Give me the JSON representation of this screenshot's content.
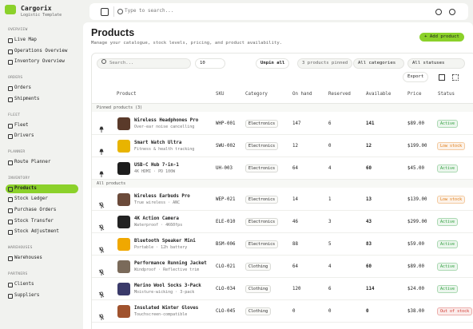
{
  "sidebar": {
    "brand": "Cargorix",
    "tagline": "Logistic Template",
    "sections": [
      {
        "label": "OVERVIEW",
        "items": [
          "Live Map",
          "Operations Overview",
          "Inventory Overview"
        ]
      },
      {
        "label": "ORDERS",
        "items": [
          "Orders",
          "Shipments"
        ]
      },
      {
        "label": "FLEET",
        "items": [
          "Fleet",
          "Drivers"
        ]
      },
      {
        "label": "PLANNER",
        "items": [
          "Route Planner"
        ]
      },
      {
        "label": "INVENTORY",
        "items": [
          "Products",
          "Stock Ledger",
          "Purchase Orders",
          "Stock Transfer",
          "Stock Adjustment"
        ]
      },
      {
        "label": "WAREHOUSES",
        "items": [
          "Warehouses"
        ]
      },
      {
        "label": "PARTNERS",
        "items": [
          "Clients",
          "Suppliers"
        ]
      }
    ]
  },
  "topbar": {
    "search": "Type to search..."
  },
  "header": {
    "title": "Products",
    "subtitle": "Manage your catalogue, stock levels, pricing, and product availability.",
    "add_button": "+ Add product"
  },
  "toolbar": {
    "search": "Search...",
    "page_size": "10",
    "unpin": "Unpin all",
    "pinned_count": "3 products pinned",
    "category_filter": "All categories",
    "status_filter": "All statuses",
    "export": "Export"
  },
  "table": {
    "columns": [
      "Product",
      "SKU",
      "Category",
      "On hand",
      "Reserved",
      "Available",
      "Price",
      "Status"
    ],
    "groups": [
      {
        "label": "Pinned products (3)",
        "pinned": true,
        "rows": [
          {
            "name": "Wireless Headphones Pro",
            "desc": "Over-ear noise cancelling",
            "sku": "WHP-001",
            "category": "Electronics",
            "on_hand": "147",
            "reserved": "6",
            "available": "141",
            "price": "$89.00",
            "status": "Active",
            "status_color": "#2e9e3c",
            "image_color": "#5a3a2a"
          },
          {
            "name": "Smart Watch Ultra",
            "desc": "Fitness & health tracking",
            "sku": "SWU-002",
            "category": "Electronics",
            "on_hand": "12",
            "reserved": "0",
            "available": "12",
            "price": "$199.00",
            "status": "Low stock",
            "status_color": "#e07a10",
            "image_color": "#e8b400"
          },
          {
            "name": "USB-C Hub 7-in-1",
            "desc": "4K HDMI · PD 100W",
            "sku": "UH-003",
            "category": "Electronics",
            "on_hand": "64",
            "reserved": "4",
            "available": "60",
            "price": "$45.00",
            "status": "Active",
            "status_color": "#2e9e3c",
            "image_color": "#1d1d1d"
          }
        ]
      },
      {
        "label": "All products",
        "pinned": false,
        "rows": [
          {
            "name": "Wireless Earbuds Pro",
            "desc": "True wireless · ANC",
            "sku": "WEP-021",
            "category": "Electronics",
            "on_hand": "14",
            "reserved": "1",
            "available": "13",
            "price": "$139.00",
            "status": "Low stock",
            "status_color": "#e07a10",
            "image_color": "#6b4a3a"
          },
          {
            "name": "4K Action Camera",
            "desc": "Waterproof · 4K60fps",
            "sku": "ELE-010",
            "category": "Electronics",
            "on_hand": "46",
            "reserved": "3",
            "available": "43",
            "price": "$299.00",
            "status": "Active",
            "status_color": "#2e9e3c",
            "image_color": "#222222"
          },
          {
            "name": "Bluetooth Speaker Mini",
            "desc": "Portable · 12h battery",
            "sku": "BSM-006",
            "category": "Electronics",
            "on_hand": "88",
            "reserved": "5",
            "available": "83",
            "price": "$59.00",
            "status": "Active",
            "status_color": "#2e9e3c",
            "image_color": "#f0a800"
          },
          {
            "name": "Performance Running Jacket",
            "desc": "Windproof · Reflective trim",
            "sku": "CLO-021",
            "category": "Clothing",
            "on_hand": "64",
            "reserved": "4",
            "available": "60",
            "price": "$89.00",
            "status": "Active",
            "status_color": "#2e9e3c",
            "image_color": "#7a6a5a"
          },
          {
            "name": "Merino Wool Socks 3-Pack",
            "desc": "Moisture-wicking · 3-pack",
            "sku": "CLO-034",
            "category": "Clothing",
            "on_hand": "120",
            "reserved": "6",
            "available": "114",
            "price": "$24.00",
            "status": "Active",
            "status_color": "#2e9e3c",
            "image_color": "#3a3a6a"
          },
          {
            "name": "Insulated Winter Gloves",
            "desc": "Touchscreen-compatible",
            "sku": "CLO-045",
            "category": "Clothing",
            "on_hand": "0",
            "reserved": "0",
            "available": "0",
            "price": "$38.00",
            "status": "Out of stock",
            "status_color": "#d0342c",
            "image_color": "#a0522d"
          }
        ]
      }
    ]
  }
}
